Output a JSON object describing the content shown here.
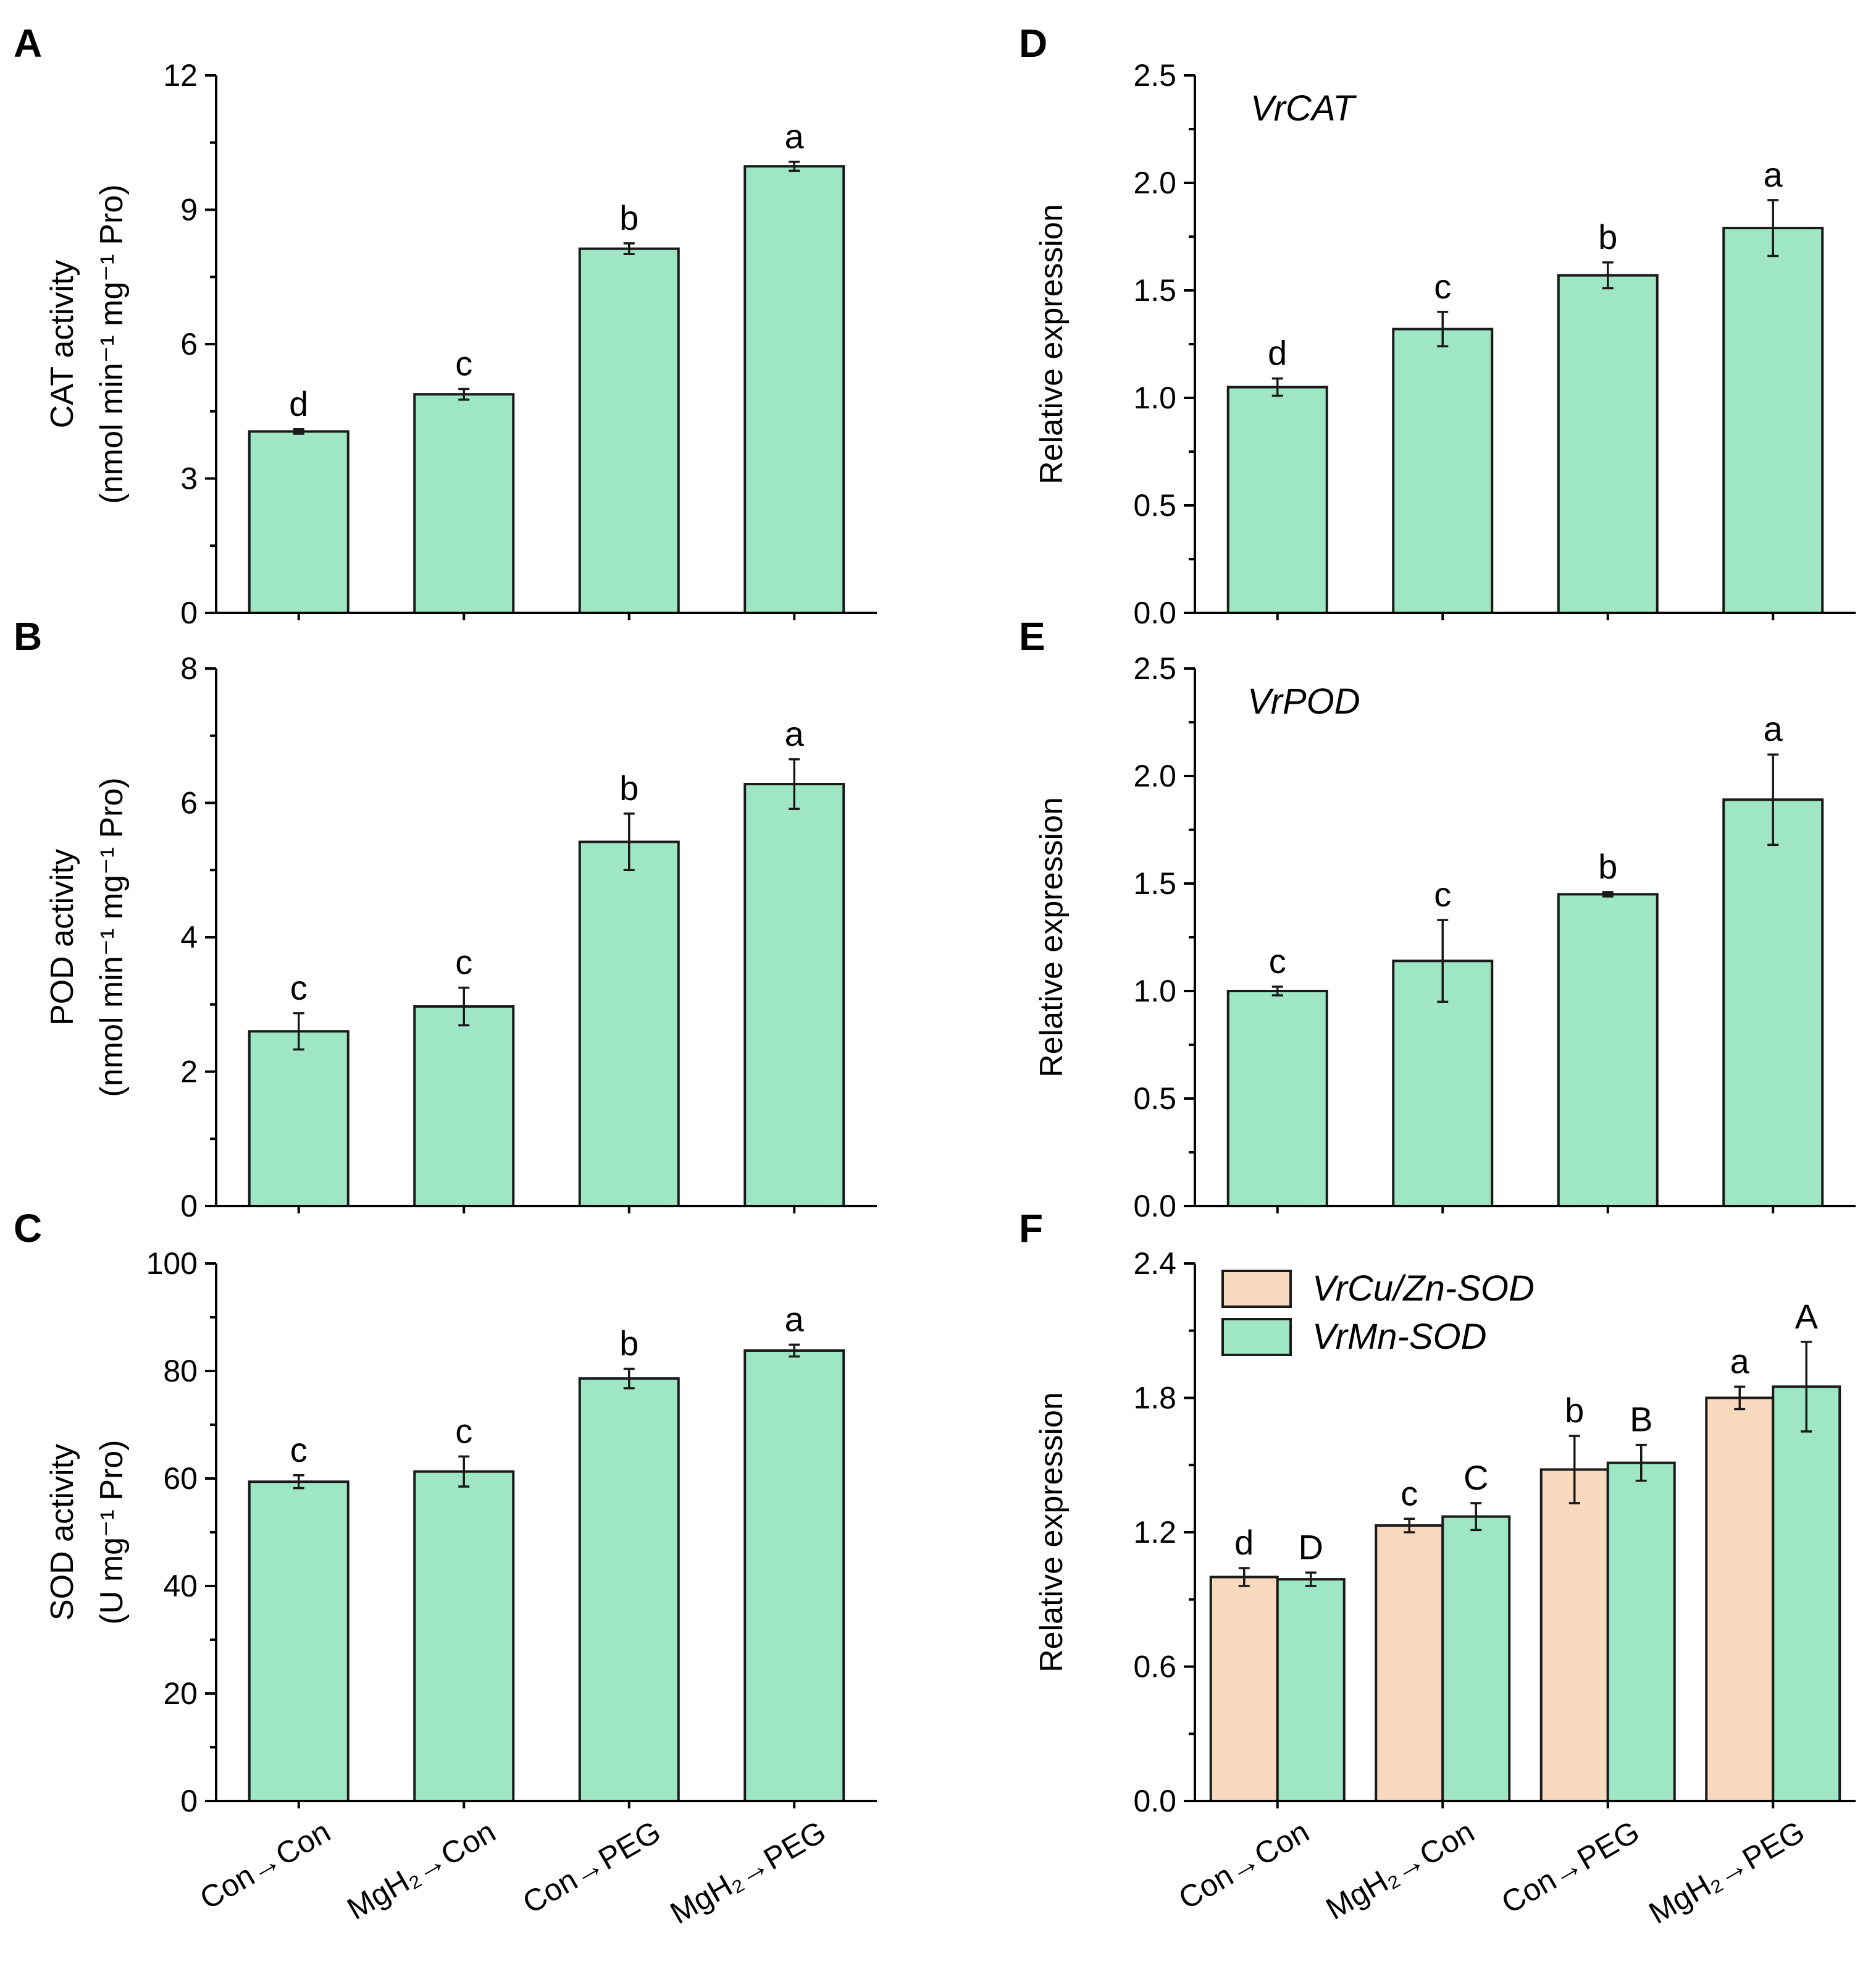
{
  "colors": {
    "green": "#9ee6c4",
    "peach": "#f8d9bd",
    "stroke": "#1a1a1a"
  },
  "categories": [
    "Con→Con",
    "MgH₂→Con",
    "Con→PEG",
    "MgH₂→PEG"
  ],
  "chart_data": [
    {
      "id": "A",
      "type": "bar",
      "panel_label": "A",
      "ylabel_lines": [
        "CAT activity",
        "(nmol min⁻¹ mg⁻¹ Pro)"
      ],
      "ylim": [
        0,
        12
      ],
      "yticks": [
        0,
        3,
        6,
        9,
        12
      ],
      "tick_labels": [
        "0",
        "3",
        "6",
        "9",
        "12"
      ],
      "show_xlabels": false,
      "series": [
        {
          "name": "CAT",
          "color": "#9ee6c4",
          "values": [
            4.05,
            4.88,
            8.13,
            9.97
          ],
          "errors": [
            0.05,
            0.12,
            0.12,
            0.1
          ],
          "letters": [
            "d",
            "c",
            "b",
            "a"
          ]
        }
      ]
    },
    {
      "id": "B",
      "type": "bar",
      "panel_label": "B",
      "ylabel_lines": [
        "POD activity",
        "(nmol min⁻¹ mg⁻¹ Pro)"
      ],
      "ylim": [
        0,
        8
      ],
      "yticks": [
        0,
        2,
        4,
        6,
        8
      ],
      "tick_labels": [
        "0",
        "2",
        "4",
        "6",
        "8"
      ],
      "show_xlabels": false,
      "series": [
        {
          "name": "POD",
          "color": "#9ee6c4",
          "values": [
            2.6,
            2.97,
            5.42,
            6.28
          ],
          "errors": [
            0.27,
            0.28,
            0.42,
            0.37
          ],
          "letters": [
            "c",
            "c",
            "b",
            "a"
          ]
        }
      ]
    },
    {
      "id": "C",
      "type": "bar",
      "panel_label": "C",
      "ylabel_lines": [
        "SOD activity",
        "(U mg⁻¹ Pro)"
      ],
      "ylim": [
        0,
        100
      ],
      "yticks": [
        0,
        20,
        40,
        60,
        80,
        100
      ],
      "tick_labels": [
        "0",
        "20",
        "40",
        "60",
        "80",
        "100"
      ],
      "show_xlabels": true,
      "series": [
        {
          "name": "SOD",
          "color": "#9ee6c4",
          "values": [
            59.4,
            61.3,
            78.6,
            83.8
          ],
          "errors": [
            1.2,
            2.8,
            1.8,
            1.1
          ],
          "letters": [
            "c",
            "c",
            "b",
            "a"
          ]
        }
      ]
    },
    {
      "id": "D",
      "type": "bar",
      "panel_label": "D",
      "gene": "VrCAT",
      "ylabel_lines": [
        "Relative expression"
      ],
      "ylim": [
        0,
        2.5
      ],
      "yticks": [
        0,
        0.5,
        1,
        1.5,
        2,
        2.5
      ],
      "tick_labels": [
        "0.0",
        "0.5",
        "1.0",
        "1.5",
        "2.0",
        "2.5"
      ],
      "show_xlabels": false,
      "series": [
        {
          "name": "VrCAT",
          "color": "#9ee6c4",
          "values": [
            1.05,
            1.32,
            1.57,
            1.79
          ],
          "errors": [
            0.04,
            0.08,
            0.06,
            0.13
          ],
          "letters": [
            "d",
            "c",
            "b",
            "a"
          ]
        }
      ]
    },
    {
      "id": "E",
      "type": "bar",
      "panel_label": "E",
      "gene": "VrPOD",
      "ylabel_lines": [
        "Relative expression"
      ],
      "ylim": [
        0,
        2.5
      ],
      "yticks": [
        0,
        0.5,
        1,
        1.5,
        2,
        2.5
      ],
      "tick_labels": [
        "0.0",
        "0.5",
        "1.0",
        "1.5",
        "2.0",
        "2.5"
      ],
      "show_xlabels": false,
      "series": [
        {
          "name": "VrPOD",
          "color": "#9ee6c4",
          "values": [
            1.0,
            1.14,
            1.45,
            1.89
          ],
          "errors": [
            0.02,
            0.19,
            0.01,
            0.21
          ],
          "letters": [
            "c",
            "c",
            "b",
            "a"
          ]
        }
      ]
    },
    {
      "id": "F",
      "type": "bar",
      "panel_label": "F",
      "ylabel_lines": [
        "Relative expression"
      ],
      "ylim": [
        0,
        2.4
      ],
      "yticks": [
        0,
        0.6,
        1.2,
        1.8,
        2.4
      ],
      "tick_labels": [
        "0.0",
        "0.6",
        "1.2",
        "1.8",
        "2.4"
      ],
      "show_xlabels": true,
      "legend": {
        "position": "top-left"
      },
      "series": [
        {
          "name": "VrCu/Zn-SOD",
          "color": "#f8d9bd",
          "values": [
            1.0,
            1.23,
            1.48,
            1.8
          ],
          "errors": [
            0.04,
            0.03,
            0.15,
            0.05
          ],
          "letters": [
            "d",
            "c",
            "b",
            "a"
          ]
        },
        {
          "name": "VrMn-SOD",
          "color": "#9ee6c4",
          "values": [
            0.99,
            1.27,
            1.51,
            1.85
          ],
          "errors": [
            0.03,
            0.06,
            0.08,
            0.2
          ],
          "letters": [
            "D",
            "C",
            "B",
            "A"
          ]
        }
      ]
    }
  ]
}
